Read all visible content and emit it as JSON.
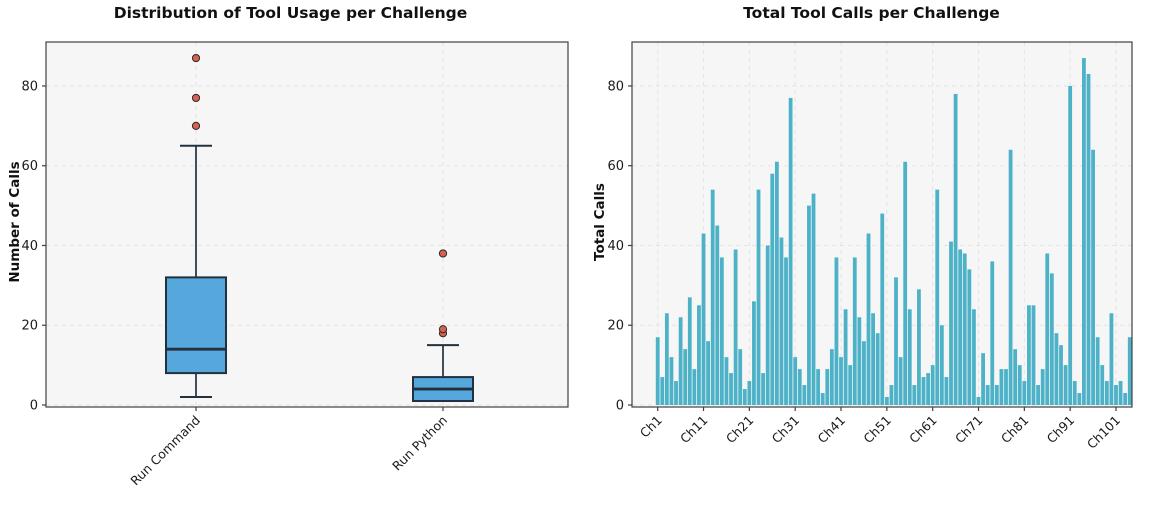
{
  "figure": {
    "left_title": "Distribution of Tool Usage per Challenge",
    "right_title": "Total Tool Calls per Challenge",
    "left_ylabel": "Number of Calls",
    "right_ylabel": "Total Calls"
  },
  "chart_data": [
    {
      "type": "box",
      "title": "Distribution of Tool Usage per Challenge",
      "ylabel": "Number of Calls",
      "yticks": [
        0,
        20,
        40,
        60,
        80
      ],
      "ylim": [
        -3,
        91
      ],
      "grid": true,
      "legend_position": "none",
      "categories": [
        "Run Command",
        "Run Python"
      ],
      "series": [
        {
          "label": "Run Command",
          "whislo": 2,
          "q1": 8,
          "med": 14,
          "q3": 32,
          "whishi": 65,
          "fliers": [
            70,
            77,
            87
          ]
        },
        {
          "label": "Run Python",
          "whislo": 1,
          "q1": 1,
          "med": 4,
          "q3": 7,
          "whishi": 15,
          "fliers": [
            18,
            19,
            38
          ]
        }
      ],
      "colors": {
        "box_fill": "#55a7dc",
        "box_edge": "#22303f",
        "flier_fill": "#d9604f",
        "flier_edge": "#2a2a2a",
        "plot_bg": "#f6f6f6",
        "grid": "#e3e3e3",
        "spine": "#404040",
        "text": "#1b1b1b"
      }
    },
    {
      "type": "bar",
      "title": "Total Tool Calls per Challenge",
      "ylabel": "Total Calls",
      "xlabel": "",
      "yticks": [
        0,
        20,
        40,
        60,
        80
      ],
      "ylim": [
        0,
        91
      ],
      "grid": true,
      "xtick_step": 10,
      "xtick_labels": [
        "Ch1",
        "Ch11",
        "Ch21",
        "Ch31",
        "Ch41",
        "Ch51",
        "Ch61",
        "Ch71",
        "Ch81",
        "Ch91",
        "Ch101"
      ],
      "values": [
        17,
        7,
        23,
        12,
        6,
        22,
        14,
        27,
        9,
        25,
        43,
        16,
        54,
        45,
        37,
        12,
        8,
        39,
        14,
        4,
        6,
        26,
        54,
        8,
        40,
        58,
        61,
        42,
        37,
        77,
        12,
        9,
        5,
        50,
        53,
        9,
        3,
        9,
        14,
        37,
        12,
        24,
        10,
        37,
        22,
        16,
        43,
        23,
        18,
        48,
        2,
        5,
        32,
        12,
        61,
        24,
        5,
        29,
        7,
        8,
        10,
        54,
        20,
        7,
        41,
        78,
        39,
        38,
        34,
        24,
        2,
        13,
        5,
        36,
        5,
        9,
        9,
        64,
        14,
        10,
        6,
        25,
        25,
        5,
        9,
        38,
        33,
        18,
        15,
        10,
        80,
        6,
        3,
        87,
        83,
        64,
        17,
        10,
        6,
        23,
        5,
        6,
        3,
        17
      ],
      "colors": {
        "bar_fill": "#4db2c8",
        "plot_bg": "#f6f6f6",
        "grid": "#e3e3e3",
        "spine": "#404040",
        "text": "#1b1b1b"
      }
    }
  ]
}
